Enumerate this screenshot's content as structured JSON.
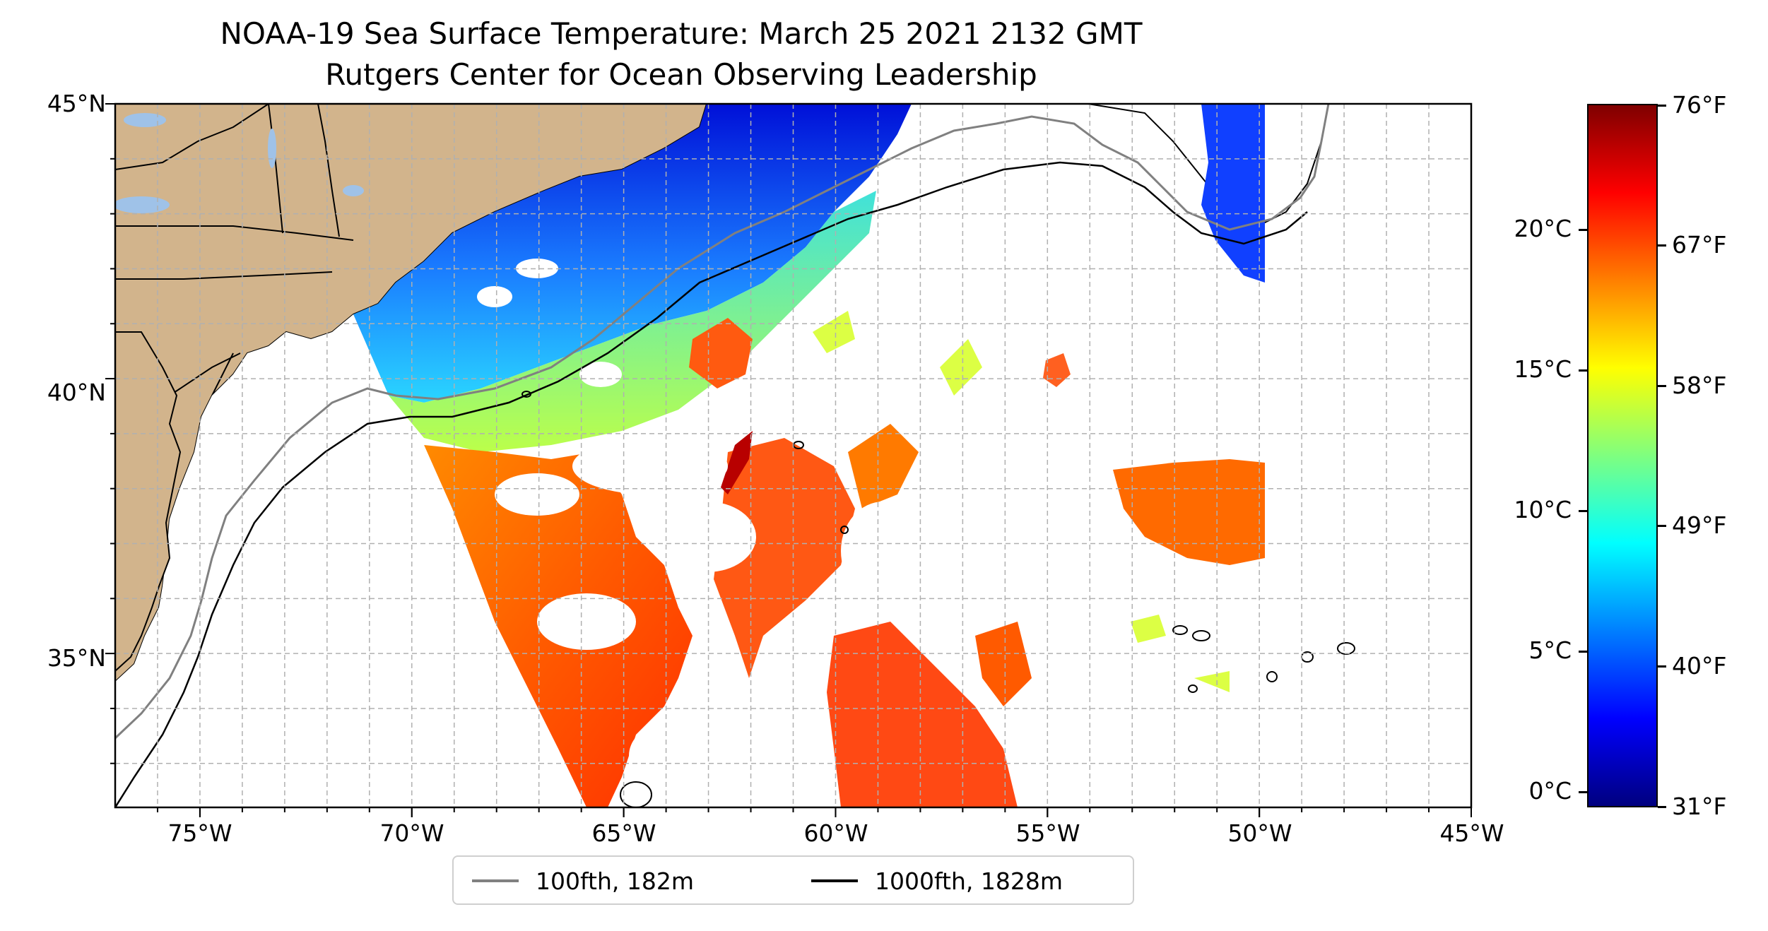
{
  "title": {
    "line1": "NOAA-19 Sea Surface Temperature: March 25 2021 2132 GMT",
    "line2": "Rutgers Center for Ocean Observing Leadership"
  },
  "map": {
    "lon_range": [
      -77,
      -45
    ],
    "lat_range": [
      32.2,
      45
    ],
    "lat_labels": [
      {
        "value": 45,
        "label": "45°N"
      },
      {
        "value": 40,
        "label": "40°N"
      },
      {
        "value": 35,
        "label": "35°N"
      }
    ],
    "lon_labels": [
      {
        "value": -75,
        "label": "75°W"
      },
      {
        "value": -70,
        "label": "70°W"
      },
      {
        "value": -65,
        "label": "65°W"
      },
      {
        "value": -60,
        "label": "60°W"
      },
      {
        "value": -55,
        "label": "55°W"
      },
      {
        "value": -50,
        "label": "50°W"
      },
      {
        "value": -45,
        "label": "45°W"
      }
    ],
    "land_color": "#d2b48c",
    "gridlines": "dashed, 1° spacing"
  },
  "legend": {
    "items": [
      {
        "label": "100fth, 182m",
        "color": "#808080"
      },
      {
        "label": "1000fth, 1828m",
        "color": "#000000"
      }
    ]
  },
  "colorbar": {
    "colormap": "jet",
    "celsius_ticks": [
      {
        "value": 0,
        "label": "0°C"
      },
      {
        "value": 5,
        "label": "5°C"
      },
      {
        "value": 10,
        "label": "10°C"
      },
      {
        "value": 15,
        "label": "15°C"
      },
      {
        "value": 20,
        "label": "20°C"
      }
    ],
    "fahrenheit_ticks": [
      {
        "value": 31,
        "label": "31°F"
      },
      {
        "value": 40,
        "label": "40°F"
      },
      {
        "value": 49,
        "label": "49°F"
      },
      {
        "value": 58,
        "label": "58°F"
      },
      {
        "value": 67,
        "label": "67°F"
      },
      {
        "value": 76,
        "label": "76°F"
      }
    ]
  }
}
